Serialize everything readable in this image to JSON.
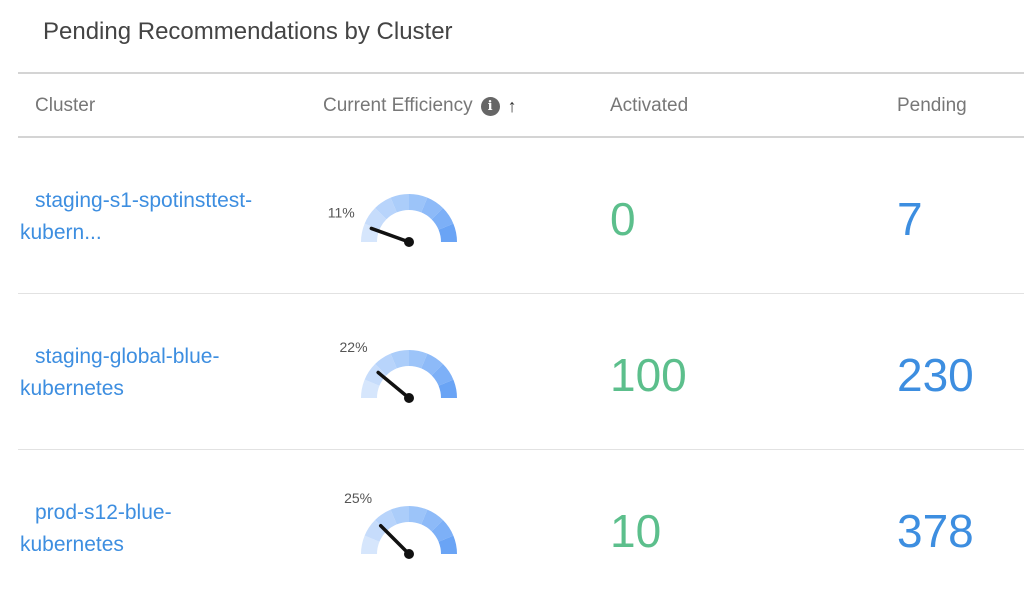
{
  "title": "Pending Recommendations by Cluster",
  "columns": {
    "cluster": "Cluster",
    "efficiency": "Current Efficiency",
    "activated": "Activated",
    "pending": "Pending"
  },
  "icons": {
    "info": "info-icon",
    "sort": "sort-ascending-arrow-icon"
  },
  "colors": {
    "link": "#3d8ee0",
    "activated": "#5cbf8c",
    "pending": "#3d8ee0"
  },
  "rows": [
    {
      "name_line1": "staging-s1-spotinsttest-",
      "name_line2": "kubern...",
      "efficiency_label": "11%",
      "efficiency": 11,
      "activated": "0",
      "pending": "7"
    },
    {
      "name_line1": "staging-global-blue-",
      "name_line2": "kubernetes",
      "efficiency_label": "22%",
      "efficiency": 22,
      "activated": "100",
      "pending": "230"
    },
    {
      "name_line1": "prod-s12-blue-",
      "name_line2": "kubernetes",
      "efficiency_label": "25%",
      "efficiency": 25,
      "activated": "10",
      "pending": "378"
    }
  ]
}
